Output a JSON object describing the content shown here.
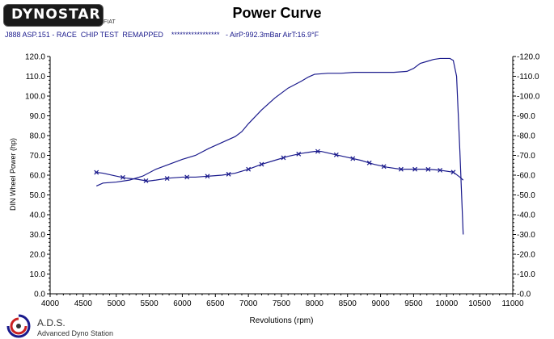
{
  "header": {
    "logo_text": "DYNOSTAR",
    "logo_sub": "FIAT",
    "title": "Power Curve",
    "run_info": "J888 ASP.151 - RACE  CHIP TEST  REMAPPED    *****************   - AirP:992.3mBar AirT:16.9°F"
  },
  "footer": {
    "brand": "A.D.S.",
    "tagline": "Advanced Dyno Station"
  },
  "colors": {
    "curve": "#1a1a8c",
    "axis": "#000000"
  },
  "chart_data": {
    "type": "line",
    "title": "Power Curve",
    "xlabel": "Revolutions (rpm)",
    "ylabel": "DIN Wheel Power (hp)",
    "xlim": [
      4000,
      11000
    ],
    "ylim": [
      0,
      120
    ],
    "xticks": [
      "4000",
      "4500",
      "5000",
      "5500",
      "6000",
      "6500",
      "7000",
      "7500",
      "8000",
      "8500",
      "9000",
      "9500",
      "10000",
      "10500",
      "11000"
    ],
    "yticks": [
      "0.0",
      "10.0",
      "20.0",
      "30.0",
      "40.0",
      "50.0",
      "60.0",
      "70.0",
      "80.0",
      "90.0",
      "100.0",
      "110.0",
      "120.0"
    ],
    "yticks_right": [
      "-0.0",
      "-10.0",
      "-20.0",
      "-30.0",
      "-40.0",
      "-50.0",
      "-60.0",
      "-70.0",
      "-80.0",
      "-90.0",
      "-100.0",
      "-110.0",
      "-120.0"
    ],
    "grid": false,
    "series": [
      {
        "marker": "none",
        "x": [
          4700,
          4800,
          5000,
          5200,
          5400,
          5600,
          5800,
          6000,
          6200,
          6400,
          6600,
          6800,
          6900,
          7000,
          7200,
          7400,
          7600,
          7800,
          7900,
          8000,
          8200,
          8400,
          8600,
          8800,
          9000,
          9200,
          9400,
          9500,
          9600,
          9700,
          9800,
          9900,
          10000,
          10050,
          10100,
          10150,
          10200,
          10250
        ],
        "y": [
          54.5,
          56,
          56.5,
          57.5,
          59.5,
          63,
          65.5,
          68,
          70,
          73.5,
          76.5,
          79.5,
          82,
          86,
          93,
          99,
          104,
          107.5,
          109.5,
          111,
          111.5,
          111.5,
          112,
          112,
          112,
          112,
          112.5,
          114,
          116.5,
          117.5,
          118.5,
          119,
          119,
          119,
          118,
          110,
          72,
          30
        ]
      },
      {
        "marker": "x",
        "x": [
          4680,
          4800,
          5000,
          5150,
          5300,
          5480,
          5600,
          5800,
          6000,
          6200,
          6400,
          6600,
          6800,
          7000,
          7200,
          7400,
          7600,
          7800,
          8000,
          8100,
          8300,
          8500,
          8700,
          8900,
          9100,
          9300,
          9500,
          9700,
          9900,
          10100,
          10200,
          10250
        ],
        "y": [
          61.5,
          61,
          59.5,
          58.5,
          58,
          57,
          57.5,
          58.5,
          59,
          59,
          59.5,
          60,
          61,
          63,
          65.5,
          67.5,
          69.5,
          71,
          72,
          72,
          70.5,
          69,
          67.5,
          65.5,
          64,
          63,
          63,
          63,
          62.5,
          61.5,
          59,
          57.5
        ]
      }
    ],
    "markers_x": [
      4700,
      5100,
      5450,
      5770,
      6070,
      6380,
      6700,
      7000,
      7200,
      7530,
      7760,
      8050,
      8330,
      8580,
      8830,
      9050,
      9310,
      9520,
      9720,
      9900,
      10100
    ]
  }
}
